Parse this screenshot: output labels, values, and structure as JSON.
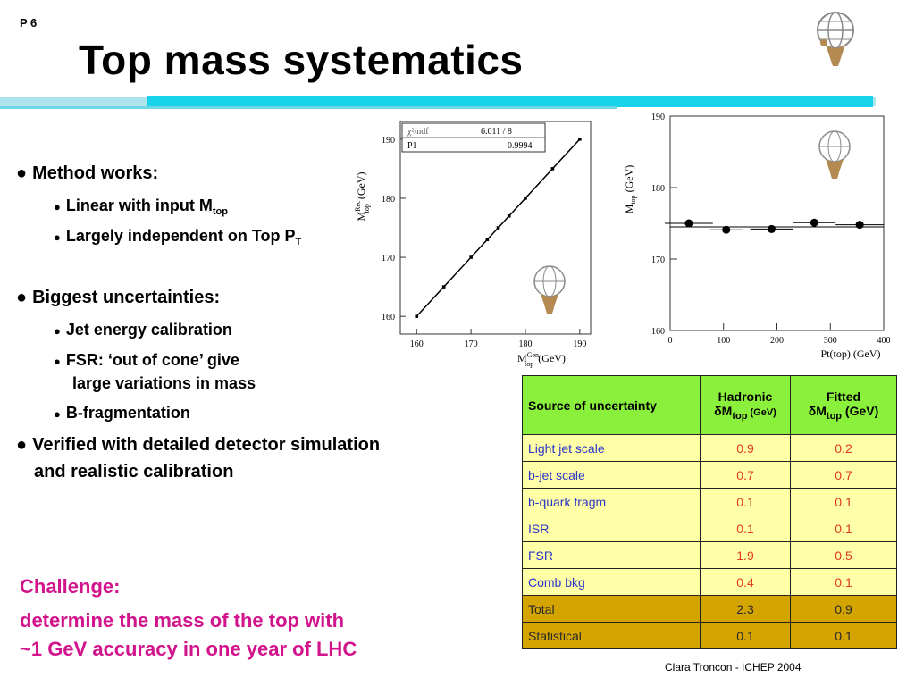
{
  "page": {
    "number": "P 6",
    "title": "Top mass systematics",
    "footer": "Clara Troncon - ICHEP 2004"
  },
  "bullets": {
    "method": "Method works:",
    "linear": "Linear with input M",
    "linear_sub": "top",
    "independent": "Largely independent on Top P",
    "independent_sub": "T",
    "biggest": "Biggest uncertainties:",
    "jet": "Jet energy calibration",
    "fsr1": "FSR: ‘out of cone’ give",
    "fsr2": "large variations in mass",
    "bfrag": "B-fragmentation",
    "verified1": "Verified with detailed detector simulation",
    "verified2": "and realistic calibration"
  },
  "challenge": {
    "heading": "Challenge:",
    "line1": "determine the mass of the top with",
    "line2": "~1 GeV accuracy in one year of LHC"
  },
  "table": {
    "headers": {
      "source": "Source of uncertainty",
      "hadronic": "Hadronic",
      "fitted": "Fitted",
      "delta": "δ",
      "m": "M",
      "top": "top",
      "gev_small": " (GeV)",
      "gev": " (GeV)"
    },
    "rows": [
      {
        "source": "Light jet scale",
        "hadronic": "0.9",
        "fitted": "0.2"
      },
      {
        "source": "b-jet scale",
        "hadronic": "0.7",
        "fitted": "0.7"
      },
      {
        "source": "b-quark fragm",
        "hadronic": "0.1",
        "fitted": "0.1"
      },
      {
        "source": "ISR",
        "hadronic": "0.1",
        "fitted": "0.1"
      },
      {
        "source": "FSR",
        "hadronic": "1.9",
        "fitted": "0.5"
      },
      {
        "source": "Comb bkg",
        "hadronic": "0.4",
        "fitted": "0.1"
      }
    ],
    "summary": [
      {
        "source": "Total",
        "hadronic": "2.3",
        "fitted": "0.9"
      },
      {
        "source": "Statistical",
        "hadronic": "0.1",
        "fitted": "0.1"
      }
    ]
  },
  "chart_data": [
    {
      "type": "scatter",
      "title": "",
      "xlabel": "M^Gen_top (GeV)",
      "ylabel": "M^Rec_top (GeV)",
      "xlim": [
        157,
        192
      ],
      "ylim": [
        157,
        193
      ],
      "x_ticks": [
        160,
        170,
        180,
        190
      ],
      "y_ticks": [
        160,
        170,
        180,
        190
      ],
      "points": [
        [
          160,
          160
        ],
        [
          165,
          165
        ],
        [
          170,
          170
        ],
        [
          173,
          173
        ],
        [
          175,
          175
        ],
        [
          177,
          177
        ],
        [
          180,
          180
        ],
        [
          185,
          185
        ],
        [
          190,
          190
        ]
      ],
      "fit_line": [
        [
          160,
          160
        ],
        [
          190,
          190
        ]
      ],
      "stats": {
        "chi2_label": "χ²/ndf",
        "chi2_value": "6.011  /  8",
        "p1_label": "P1",
        "p1_value": "0.9994"
      }
    },
    {
      "type": "scatter",
      "title": "",
      "xlabel": "Pt(top) (GeV)",
      "ylabel": "M_top (GeV)",
      "xlim": [
        0,
        400
      ],
      "ylim": [
        160,
        190
      ],
      "x_ticks": [
        0,
        100,
        200,
        300,
        400
      ],
      "y_ticks": [
        160,
        170,
        180,
        190
      ],
      "points": [
        [
          35,
          175.0
        ],
        [
          105,
          174.1
        ],
        [
          190,
          174.2
        ],
        [
          270,
          175.1
        ],
        [
          355,
          174.8
        ]
      ],
      "x_errors": [
        45,
        30,
        40,
        40,
        45
      ],
      "reference_line": 174.5
    }
  ]
}
